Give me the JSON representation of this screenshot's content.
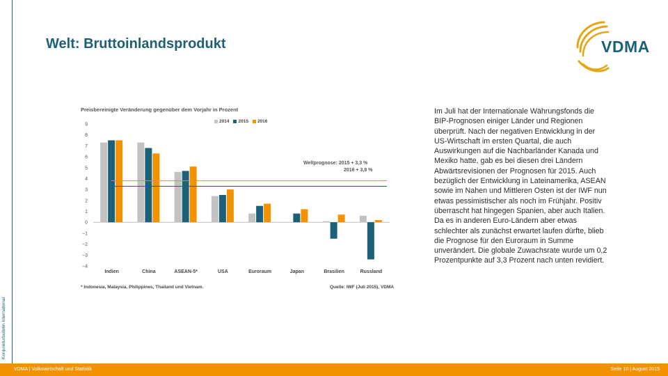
{
  "side_label": "Konjunkturbulletin international",
  "title": "Welt: Bruttoinlandsprodukt",
  "logo": {
    "text": "VDMA",
    "colors": {
      "text": "#1d6179",
      "swoosh": "#e3a615"
    }
  },
  "chart_data": {
    "type": "bar",
    "title": "Preisbereinigte Veränderung gegenüber dem Vorjahr in Prozent",
    "categories": [
      "Indien",
      "China",
      "ASEAN-5*",
      "USA",
      "Euroraum",
      "Japan",
      "Brasilien",
      "Russland"
    ],
    "series": [
      {
        "name": "2014",
        "color": "#c2c2c2",
        "values": [
          7.3,
          7.3,
          4.6,
          2.4,
          0.8,
          0.0,
          0.1,
          0.6
        ]
      },
      {
        "name": "2015",
        "color": "#1d6179",
        "values": [
          7.5,
          6.8,
          4.7,
          2.5,
          1.5,
          0.8,
          -1.5,
          -3.4
        ]
      },
      {
        "name": "2016",
        "color": "#f39200",
        "values": [
          7.5,
          6.3,
          5.1,
          3.0,
          1.7,
          1.2,
          0.7,
          0.2
        ]
      }
    ],
    "ylim": [
      -4,
      9
    ],
    "yticks": [
      "9",
      "8",
      "7",
      "6",
      "5",
      "4",
      "3",
      "2",
      "1",
      "0",
      "−1",
      "−2",
      "−3",
      "−4"
    ],
    "reference_lines": [
      {
        "name": "Weltprognose 2015",
        "value": 3.3,
        "color": "#1d6179"
      },
      {
        "name": "Weltprognose 2016",
        "value": 3.8,
        "color": "#f39200"
      }
    ],
    "annotation": [
      "Weltprognose:  2015  + 3,3 %",
      "2016  + 3,8 %"
    ],
    "footnote": "* Indonesia, Malaysia, Philippines, Thailand und Vietnam.",
    "source": "Quelle: IWF (Juli 2015), VDMA",
    "legend_position": "top-right"
  },
  "body_text": "Im Juli hat der Internationale Währungsfonds die BIP-Prognosen einiger Länder und Regionen überprüft. Nach der negativen Entwicklung in der US-Wirtschaft im ersten Quartal, die auch Auswirkungen auf die Nachbarländer Kanada und Mexiko hatte, gab es bei diesen drei Ländern Abwärtsrevisionen der Prognosen für 2015. Auch bezüglich der Entwicklung in Lateinamerika, ASEAN sowie im Nahen und Mittleren Osten ist der IWF nun etwas pessimistischer als noch im Frühjahr. Positiv überrascht hat hingegen Spanien, aber auch Italien. Da es in anderen Euro-Ländern aber etwas schlechter als zunächst erwartet laufen dürfte, blieb die Prognose für den Euroraum in Summe unverändert. Die globale Zuwachsrate wurde um 0,2 Prozentpunkte auf 3,3 Prozent nach unten revidiert.",
  "footer": {
    "left": "VDMA    | Volkswirtschaft und Statistik",
    "right": "Seite 10 | August 2015",
    "color": "#f39200"
  }
}
